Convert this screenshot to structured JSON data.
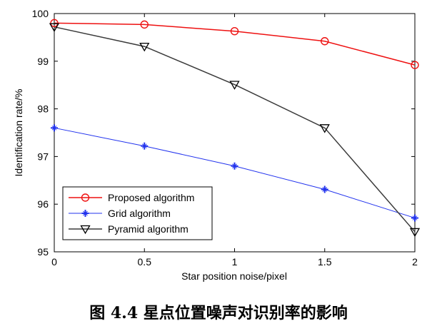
{
  "chart_data": {
    "type": "line",
    "title": "",
    "xlabel": "Star position noise/pixel",
    "ylabel": "Identification rate/%",
    "x": [
      0,
      0.5,
      1,
      1.5,
      2
    ],
    "x_tick_labels": [
      "0",
      "0.5",
      "1",
      "1.5",
      "2"
    ],
    "y_tick_labels": [
      "95",
      "96",
      "97",
      "98",
      "99",
      "100"
    ],
    "xlim": [
      0,
      2
    ],
    "ylim": [
      95,
      100
    ],
    "grid": false,
    "legend_position": "bottom-left",
    "series": [
      {
        "name": "Proposed algorithm",
        "color": "#ee1111",
        "marker": "circle",
        "values": [
          99.8,
          99.77,
          99.63,
          99.42,
          98.92
        ]
      },
      {
        "name": "Grid algorithm",
        "color": "#2233ee",
        "marker": "plus",
        "values": [
          97.6,
          97.22,
          96.8,
          96.31,
          95.71
        ]
      },
      {
        "name": "Pyramid algorithm",
        "color": "#3a3a3a",
        "marker": "triangle-down",
        "values": [
          99.72,
          99.31,
          98.51,
          97.6,
          95.42
        ]
      }
    ]
  },
  "caption": "图 4.4  星点位置噪声对识别率的影响"
}
